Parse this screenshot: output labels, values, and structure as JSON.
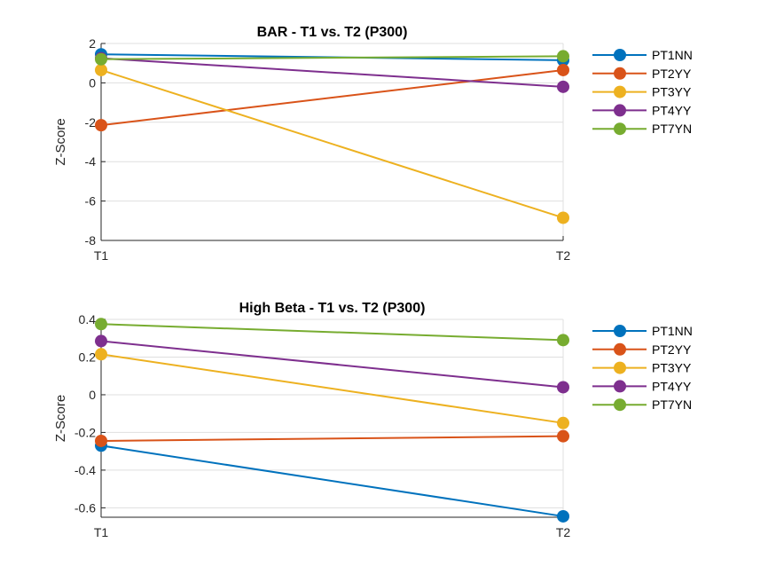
{
  "chart_data": [
    {
      "type": "line",
      "title": "BAR - T1 vs. T2 (P300)",
      "xlabel": "",
      "ylabel": "Z-Score",
      "categories": [
        "T1",
        "T2"
      ],
      "ylim": [
        -8,
        2
      ],
      "yticks": [
        2,
        0,
        -2,
        -4,
        -6,
        -8
      ],
      "grid": true,
      "legend_position": "outside-right",
      "series": [
        {
          "name": "PT1NN",
          "color": "#0072BD",
          "values": [
            1.45,
            1.15
          ]
        },
        {
          "name": "PT2YY",
          "color": "#D95319",
          "values": [
            -2.15,
            0.65
          ]
        },
        {
          "name": "PT3YY",
          "color": "#EDB120",
          "values": [
            0.65,
            -6.85
          ]
        },
        {
          "name": "PT4YY",
          "color": "#7E2F8E",
          "values": [
            1.25,
            -0.2
          ]
        },
        {
          "name": "PT7YN",
          "color": "#77AC30",
          "values": [
            1.2,
            1.35
          ]
        }
      ]
    },
    {
      "type": "line",
      "title": "High Beta - T1 vs. T2 (P300)",
      "xlabel": "",
      "ylabel": "Z-Score",
      "categories": [
        "T1",
        "T2"
      ],
      "ylim": [
        -0.65,
        0.4
      ],
      "yticks": [
        0.4,
        0.2,
        0,
        -0.2,
        -0.4,
        -0.6
      ],
      "grid": true,
      "legend_position": "outside-right",
      "series": [
        {
          "name": "PT1NN",
          "color": "#0072BD",
          "values": [
            -0.27,
            -0.645
          ]
        },
        {
          "name": "PT2YY",
          "color": "#D95319",
          "values": [
            -0.245,
            -0.22
          ]
        },
        {
          "name": "PT3YY",
          "color": "#EDB120",
          "values": [
            0.215,
            -0.15
          ]
        },
        {
          "name": "PT4YY",
          "color": "#7E2F8E",
          "values": [
            0.285,
            0.04
          ]
        },
        {
          "name": "PT7YN",
          "color": "#77AC30",
          "values": [
            0.375,
            0.29
          ]
        }
      ]
    }
  ]
}
